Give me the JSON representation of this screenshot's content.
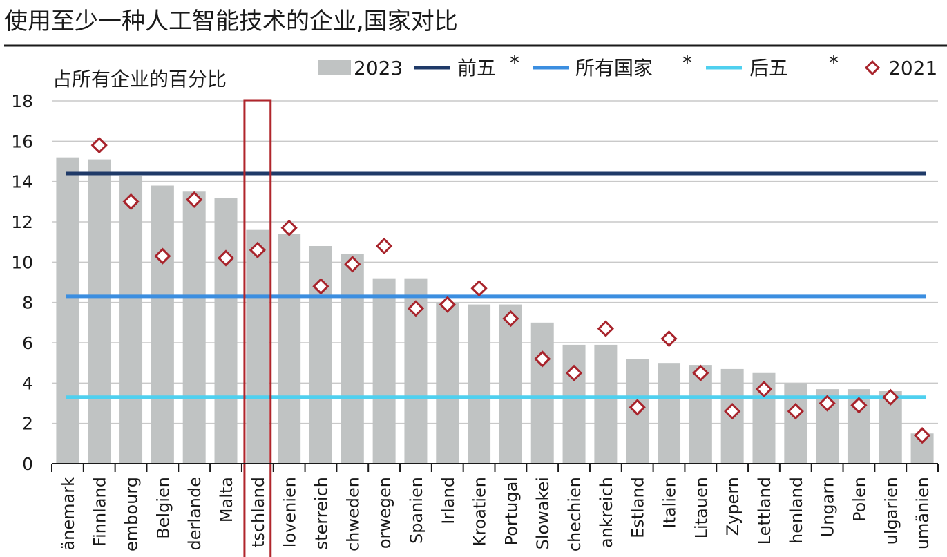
{
  "chart_data": {
    "type": "bar",
    "title": "使用至少一种人工智能技术的企业,国家对比",
    "ylabel": "占所有企业的百分比",
    "xlabel": "",
    "ylim": [
      0,
      18
    ],
    "yticks": [
      0,
      2,
      4,
      6,
      8,
      10,
      12,
      14,
      16,
      18
    ],
    "grid": true,
    "legend_position": "top-right",
    "categories": [
      "änemark",
      "Finnland",
      "embourg",
      "Belgien",
      "derlande",
      "Malta",
      "tschland",
      "lovenien",
      "sterreich",
      "chweden",
      "orwegen",
      "Spanien",
      "Irland",
      "Kroatien",
      "Portugal",
      "Slowakei",
      "chechien",
      "ankreich",
      "Estland",
      "Italien",
      "Litauen",
      "Zypern",
      "Lettland",
      "henland",
      "Ungarn",
      "Polen",
      "ulgarien",
      "umänien"
    ],
    "highlighted_category": "tschland",
    "series": [
      {
        "name": "2023",
        "kind": "bar",
        "color": "#c0c3c3",
        "values": [
          15.2,
          15.1,
          14.3,
          13.8,
          13.5,
          13.2,
          11.6,
          11.4,
          10.8,
          10.4,
          9.2,
          9.2,
          8.0,
          7.9,
          7.9,
          7.0,
          5.9,
          5.9,
          5.2,
          5.0,
          4.9,
          4.7,
          4.5,
          4.0,
          3.7,
          3.7,
          3.6,
          1.5
        ]
      },
      {
        "name": "2021",
        "kind": "marker",
        "color": "#a8232b",
        "values": [
          null,
          15.8,
          13.0,
          10.3,
          13.1,
          10.2,
          10.6,
          11.7,
          8.8,
          9.9,
          10.8,
          7.7,
          7.9,
          8.7,
          7.2,
          5.2,
          4.5,
          6.7,
          2.8,
          6.2,
          4.5,
          2.6,
          3.7,
          2.6,
          3.0,
          2.9,
          3.3,
          1.4
        ]
      }
    ],
    "reference_lines": [
      {
        "name": "前五",
        "mark": "*",
        "value": 14.4,
        "color": "#1f3a68"
      },
      {
        "name": "所有国家",
        "mark": "*",
        "value": 8.3,
        "color": "#3b8ee0"
      },
      {
        "name": "后五",
        "mark": "*",
        "value": 3.3,
        "color": "#4fd0ef"
      }
    ]
  }
}
